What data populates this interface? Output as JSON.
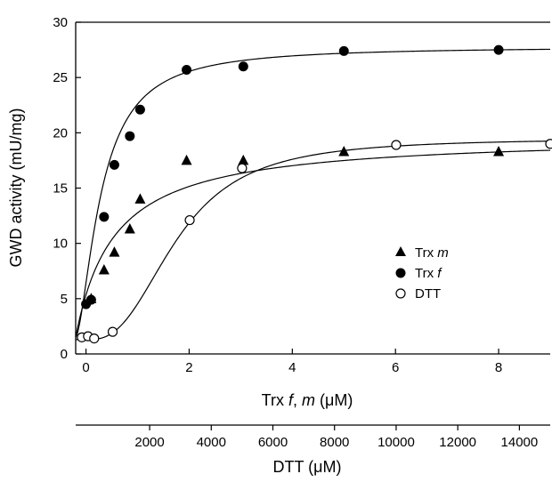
{
  "chart_data": {
    "type": "scatter",
    "ylabel": "GWD activity (mU/mg)",
    "ylim": [
      0,
      30
    ],
    "y_ticks": [
      0,
      5,
      10,
      15,
      20,
      25,
      30
    ],
    "x_axes": [
      {
        "label_prefix": "Trx ",
        "label_var1": "f",
        "label_sep": ", ",
        "label_var2": "m",
        "label_unit": " (μM)",
        "range": [
          -0.2,
          9
        ],
        "ticks": [
          0,
          2,
          4,
          6,
          8
        ]
      },
      {
        "label": "DTT (μM)",
        "range": [
          -400,
          15000
        ],
        "ticks": [
          2000,
          4000,
          6000,
          8000,
          10000,
          12000,
          14000
        ]
      }
    ],
    "legend_position": "right",
    "series": [
      {
        "name": "Trx m",
        "name_prefix": "Trx ",
        "name_var": "m",
        "marker": "triangle-filled",
        "axis": "Trx",
        "x": [
          0.1,
          0.35,
          0.55,
          0.85,
          1.05,
          1.95,
          3.05,
          5.0,
          8.0
        ],
        "y": [
          5.0,
          7.6,
          9.2,
          11.3,
          14.0,
          17.5,
          17.5,
          18.3,
          18.3
        ]
      },
      {
        "name": "Trx f",
        "name_prefix": "Trx ",
        "name_var": "f",
        "marker": "circle-filled",
        "axis": "Trx",
        "x": [
          0.0,
          0.1,
          0.35,
          0.55,
          0.85,
          1.05,
          1.95,
          3.05,
          5.0,
          8.0
        ],
        "y": [
          4.5,
          4.9,
          12.4,
          17.1,
          19.7,
          22.1,
          25.7,
          26.0,
          27.4,
          27.5
        ]
      },
      {
        "name": "DTT",
        "marker": "circle-open",
        "axis": "DTT",
        "x": [
          -200,
          0,
          200,
          800,
          3300,
          5000,
          10000,
          15000
        ],
        "y": [
          1.5,
          1.6,
          1.4,
          2.0,
          12.1,
          16.8,
          18.9,
          19.0
        ]
      }
    ],
    "curves": [
      {
        "series": "Trx f",
        "form": "hill",
        "ymin": 1.5,
        "ymax": 27.8,
        "k": 0.5,
        "n": 1.6,
        "offset": 0.2
      },
      {
        "series": "Trx m",
        "form": "hill",
        "ymin": 1.5,
        "ymax": 19.8,
        "k": 0.75,
        "n": 1.0,
        "offset": 0.2
      },
      {
        "series": "DTT",
        "form": "hill",
        "ymin": 1.3,
        "ymax": 19.5,
        "k": 2900,
        "n": 2.6,
        "offset": 0
      }
    ]
  }
}
